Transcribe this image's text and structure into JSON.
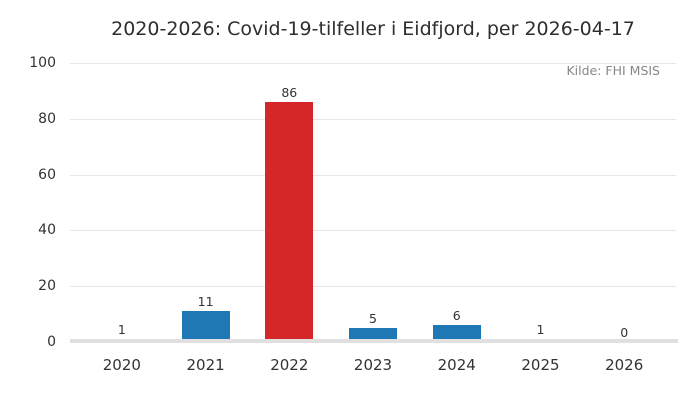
{
  "source_note": "Kilde: FHI MSIS",
  "colors": {
    "bar_default": "#1f77b4",
    "bar_highlight": "#d62728",
    "gridline": "#e7e7e7",
    "axis_line": "#e0e0e0",
    "title_text": "#2e2e2e",
    "tick_text": "#333333",
    "source_text": "#878787",
    "background": "#ffffff"
  },
  "chart_data": {
    "type": "bar",
    "title": "2020-2026: Covid-19-tilfeller i Eidfjord, per 2026-04-17",
    "categories": [
      "2020",
      "2021",
      "2022",
      "2023",
      "2024",
      "2025",
      "2026"
    ],
    "values": [
      1,
      11,
      86,
      5,
      6,
      1,
      0
    ],
    "bar_labels": [
      "1",
      "11",
      "86",
      "5",
      "6",
      "1",
      "0"
    ],
    "bar_colors": [
      "#1f77b4",
      "#1f77b4",
      "#d62728",
      "#1f77b4",
      "#1f77b4",
      "#1f77b4",
      "#1f77b4"
    ],
    "highlight_category": "2022",
    "xlabel": "",
    "ylabel": "",
    "ylim": [
      0,
      100
    ],
    "yticks": [
      0,
      20,
      40,
      60,
      80,
      100
    ],
    "grid": "horizontal",
    "legend": "none"
  }
}
